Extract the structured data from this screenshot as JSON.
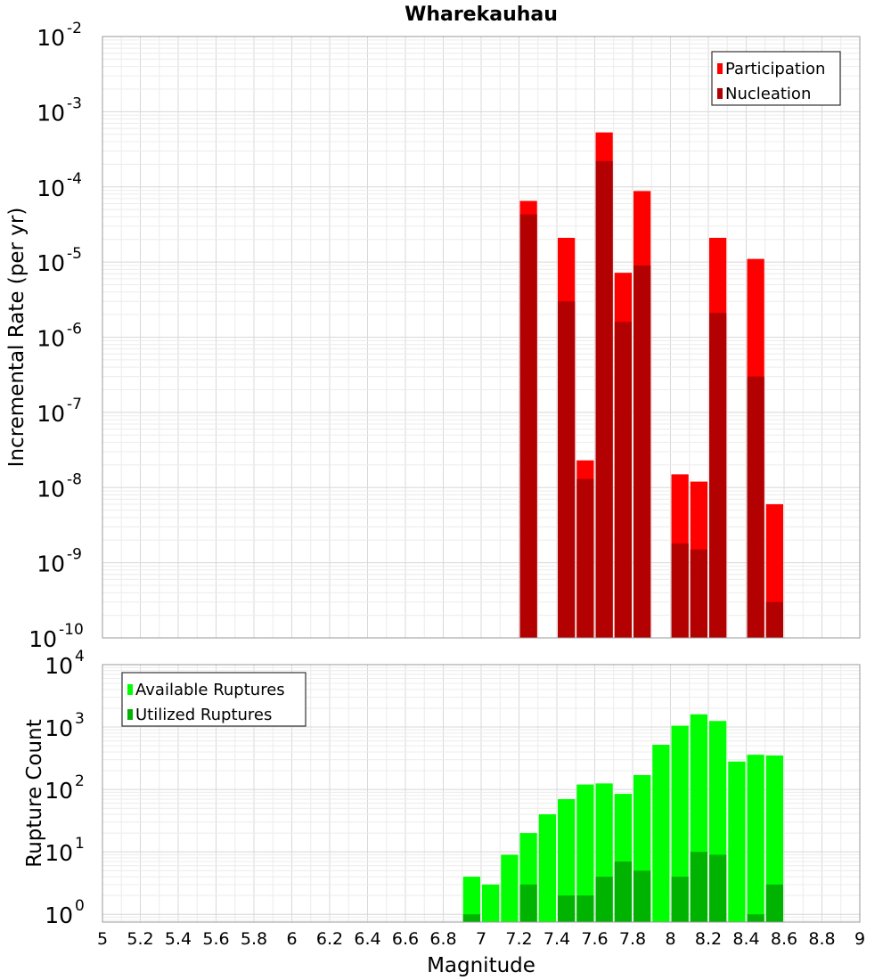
{
  "chart_data": [
    {
      "type": "bar",
      "title": "Wharekauhau",
      "xlabel": "",
      "ylabel": "Incremental Rate (per yr)",
      "yscale": "log",
      "ylim": [
        1e-10,
        0.01
      ],
      "xlim": [
        5,
        9
      ],
      "grid": true,
      "legend_position": "top-right",
      "x": [
        7.25,
        7.45,
        7.55,
        7.65,
        7.75,
        7.85,
        8.05,
        8.15,
        8.25,
        8.45,
        8.55
      ],
      "series": [
        {
          "name": "Participation",
          "color": "#ff0000",
          "values": [
            6.5e-05,
            2.1e-05,
            2.3e-08,
            0.00053,
            7.2e-06,
            8.8e-05,
            1.5e-08,
            1.2e-08,
            2.1e-05,
            1.1e-05,
            6e-09
          ]
        },
        {
          "name": "Nucleation",
          "color": "#b30000",
          "values": [
            4.3e-05,
            3e-06,
            1.3e-08,
            0.00022,
            1.6e-06,
            9e-06,
            1.8e-09,
            1.5e-09,
            2.1e-06,
            3e-07,
            3e-10
          ]
        }
      ],
      "y_ticks": [
        {
          "base": "10",
          "exp": "-2",
          "value": 0.01
        },
        {
          "base": "10",
          "exp": "-3",
          "value": 0.001
        },
        {
          "base": "10",
          "exp": "-4",
          "value": 0.0001
        },
        {
          "base": "10",
          "exp": "-5",
          "value": 1e-05
        },
        {
          "base": "10",
          "exp": "-6",
          "value": 1e-06
        },
        {
          "base": "10",
          "exp": "-7",
          "value": 1e-07
        },
        {
          "base": "10",
          "exp": "-8",
          "value": 1e-08
        },
        {
          "base": "10",
          "exp": "-9",
          "value": 1e-09
        },
        {
          "base": "10",
          "exp": "-10",
          "value": 1e-10
        }
      ]
    },
    {
      "type": "bar",
      "title": "",
      "xlabel": "Magnitude",
      "ylabel": "Rupture Count",
      "yscale": "log",
      "ylim": [
        0.75,
        10000
      ],
      "xlim": [
        5,
        9
      ],
      "grid": true,
      "legend_position": "top-left",
      "x": [
        6.95,
        7.05,
        7.15,
        7.25,
        7.35,
        7.45,
        7.55,
        7.65,
        7.75,
        7.85,
        7.95,
        8.05,
        8.15,
        8.25,
        8.35,
        8.45,
        8.55
      ],
      "series": [
        {
          "name": "Available Ruptures",
          "color": "#00ff00",
          "values": [
            4,
            3,
            9,
            20,
            40,
            70,
            120,
            125,
            85,
            170,
            520,
            1050,
            1600,
            1250,
            280,
            360,
            350
          ]
        },
        {
          "name": "Utilized Ruptures",
          "color": "#00b300",
          "values": [
            1,
            0,
            0,
            3,
            0,
            2,
            2,
            4,
            7,
            5,
            0,
            4,
            10,
            9,
            0,
            1,
            3
          ]
        }
      ],
      "y_ticks": [
        {
          "base": "10",
          "exp": "4",
          "value": 10000
        },
        {
          "base": "10",
          "exp": "3",
          "value": 1000
        },
        {
          "base": "10",
          "exp": "2",
          "value": 100
        },
        {
          "base": "10",
          "exp": "1",
          "value": 10
        },
        {
          "base": "10",
          "exp": "0",
          "value": 1
        }
      ],
      "x_ticks": [
        "5",
        "5.2",
        "5.4",
        "5.6",
        "5.8",
        "6",
        "6.2",
        "6.4",
        "6.6",
        "6.8",
        "7",
        "7.2",
        "7.4",
        "7.6",
        "7.8",
        "8",
        "8.2",
        "8.4",
        "8.6",
        "8.8",
        "9"
      ],
      "x_tick_values": [
        5,
        5.2,
        5.4,
        5.6,
        5.8,
        6,
        6.2,
        6.4,
        6.6,
        6.8,
        7,
        7.2,
        7.4,
        7.6,
        7.8,
        8,
        8.2,
        8.4,
        8.6,
        8.8,
        9
      ]
    }
  ]
}
